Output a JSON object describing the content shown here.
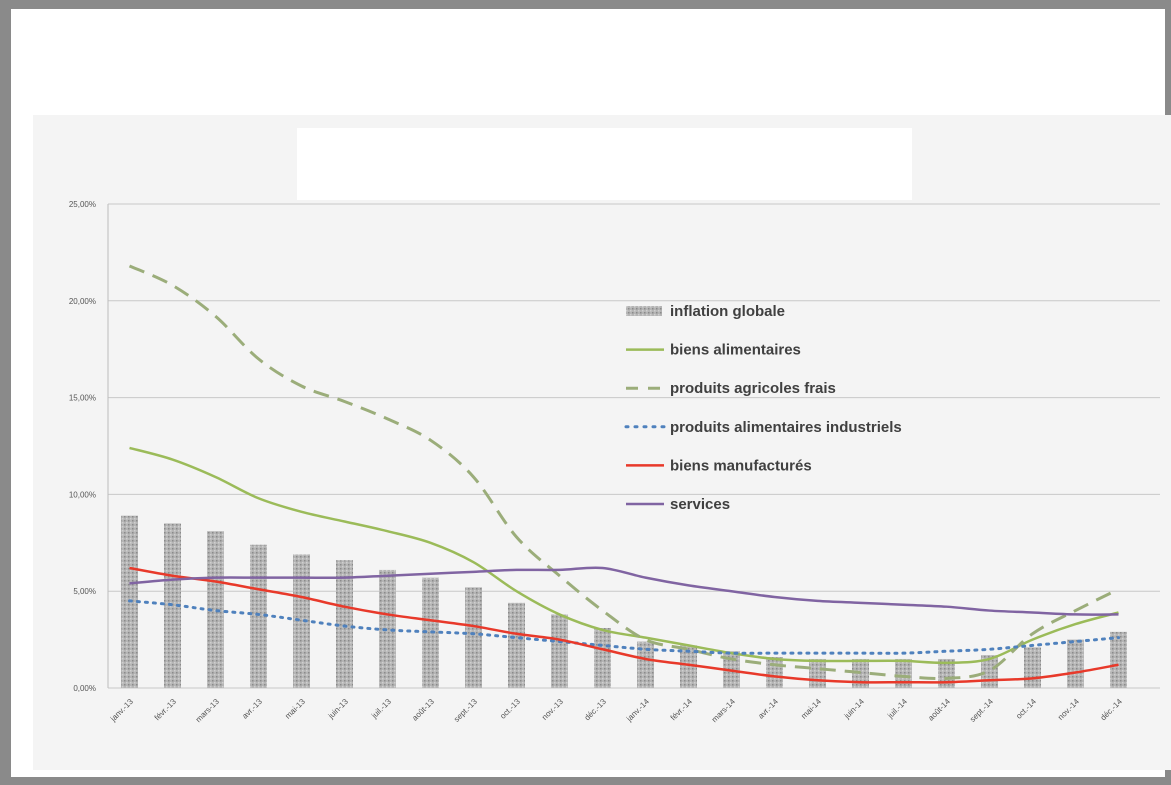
{
  "chart_data": {
    "type": "line",
    "title": "",
    "xlabel": "",
    "ylabel": "",
    "ylim": [
      0,
      25
    ],
    "y_ticks": [
      "0,00%",
      "5,00%",
      "10,00%",
      "15,00%",
      "20,00%",
      "25,00%"
    ],
    "grid": true,
    "legend_position": "center-right",
    "categories": [
      "janv.-13",
      "févr.-13",
      "mars-13",
      "avr.-13",
      "mai-13",
      "juin-13",
      "juil.-13",
      "août-13",
      "sept.-13",
      "oct.-13",
      "nov.-13",
      "déc.-13",
      "janv.-14",
      "févr.-14",
      "mars-14",
      "avr.-14",
      "mai-14",
      "juin-14",
      "juil.-14",
      "août-14",
      "sept.-14",
      "oct.-14",
      "nov.-14",
      "déc.-14"
    ],
    "series": [
      {
        "name": "inflation globale",
        "type": "bar",
        "color": "#a8a8a8",
        "values": [
          8.9,
          8.5,
          8.1,
          7.4,
          6.9,
          6.6,
          6.1,
          5.7,
          5.2,
          4.4,
          3.8,
          3.1,
          2.4,
          2.2,
          1.9,
          1.6,
          1.5,
          1.5,
          1.5,
          1.5,
          1.7,
          2.1,
          2.5,
          2.9
        ]
      },
      {
        "name": "biens alimentaires",
        "type": "line",
        "style": "solid",
        "color": "#9bbb59",
        "values": [
          12.4,
          11.8,
          10.9,
          9.8,
          9.1,
          8.6,
          8.1,
          7.5,
          6.5,
          5.0,
          3.8,
          3.0,
          2.6,
          2.2,
          1.8,
          1.5,
          1.4,
          1.4,
          1.4,
          1.3,
          1.5,
          2.5,
          3.3,
          3.9
        ]
      },
      {
        "name": "produits agricoles frais",
        "type": "line",
        "style": "dashed",
        "color": "#9bad7a",
        "values": [
          21.8,
          20.8,
          19.2,
          17.0,
          15.6,
          14.8,
          13.9,
          12.8,
          10.9,
          7.8,
          5.8,
          4.0,
          2.5,
          2.0,
          1.5,
          1.2,
          1.0,
          0.8,
          0.6,
          0.5,
          0.9,
          2.8,
          4.0,
          5.1
        ]
      },
      {
        "name": "produits alimentaires industriels",
        "type": "line",
        "style": "dotted",
        "color": "#4f81bd",
        "values": [
          4.5,
          4.3,
          4.0,
          3.8,
          3.5,
          3.2,
          3.0,
          2.9,
          2.8,
          2.6,
          2.4,
          2.2,
          2.0,
          1.9,
          1.8,
          1.8,
          1.8,
          1.8,
          1.8,
          1.9,
          2.0,
          2.2,
          2.4,
          2.6
        ]
      },
      {
        "name": "biens manufacturés",
        "type": "line",
        "style": "solid",
        "color": "#e8392a",
        "values": [
          6.2,
          5.8,
          5.5,
          5.1,
          4.7,
          4.2,
          3.8,
          3.5,
          3.2,
          2.8,
          2.5,
          2.0,
          1.5,
          1.2,
          0.9,
          0.6,
          0.4,
          0.3,
          0.3,
          0.3,
          0.4,
          0.5,
          0.8,
          1.2
        ]
      },
      {
        "name": "services",
        "type": "line",
        "style": "solid",
        "color": "#8064a2",
        "values": [
          5.4,
          5.6,
          5.7,
          5.7,
          5.7,
          5.7,
          5.8,
          5.9,
          6.0,
          6.1,
          6.1,
          6.2,
          5.7,
          5.3,
          5.0,
          4.7,
          4.5,
          4.4,
          4.3,
          4.2,
          4.0,
          3.9,
          3.8,
          3.8
        ]
      }
    ]
  }
}
